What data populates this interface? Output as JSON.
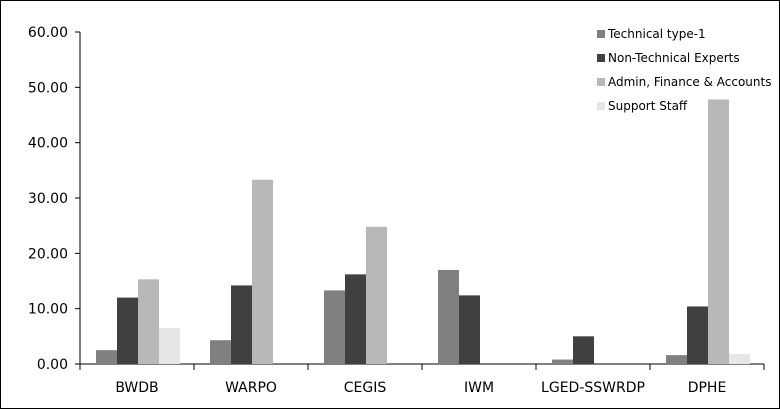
{
  "chart_data": {
    "type": "bar",
    "categories": [
      "BWDB",
      "WARPO",
      "CEGIS",
      "IWM",
      "LGED-SSWRDP",
      "DPHE"
    ],
    "series": [
      {
        "name": "Technical type-1",
        "color": "#808080",
        "values": [
          2.5,
          4.3,
          13.3,
          17.0,
          0.8,
          1.6
        ]
      },
      {
        "name": "Non-Technical Experts",
        "color": "#404040",
        "values": [
          12.0,
          14.2,
          16.2,
          12.4,
          5.0,
          10.4
        ]
      },
      {
        "name": "Admin, Finance & Accounts",
        "color": "#b8b8b8",
        "values": [
          15.3,
          33.3,
          24.8,
          0,
          0,
          47.8
        ]
      },
      {
        "name": "Support Staff",
        "color": "#e6e6e6",
        "values": [
          6.5,
          0,
          0,
          0,
          0,
          1.8
        ]
      }
    ],
    "y_ticks": [
      "0.00",
      "10.00",
      "20.00",
      "30.00",
      "40.00",
      "50.00",
      "60.00"
    ],
    "ylim": [
      0,
      60
    ],
    "title": "",
    "xlabel": "",
    "ylabel": "",
    "grid": false,
    "legend_position": "top-right"
  }
}
